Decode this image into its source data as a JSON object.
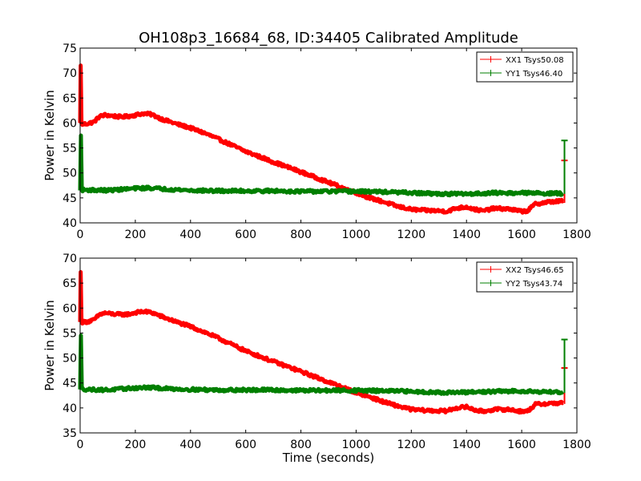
{
  "figure": {
    "title": "OH108p3_16684_68, ID:34405 Calibrated Amplitude",
    "xlabel": "Time (seconds)"
  },
  "chart_data": [
    {
      "type": "line",
      "title": "OH108p3_16684_68, ID:34405 Calibrated Amplitude",
      "xlabel": "",
      "ylabel": "Power in Kelvin",
      "xlim": [
        0,
        1800
      ],
      "ylim": [
        40,
        75
      ],
      "xticks": [
        "0",
        "200",
        "400",
        "600",
        "800",
        "1000",
        "1200",
        "1400",
        "1600",
        "1800"
      ],
      "yticks": [
        "40",
        "45",
        "50",
        "55",
        "60",
        "65",
        "70",
        "75"
      ],
      "grid": false,
      "legend_position": "top-right",
      "series": [
        {
          "name": "XX1 Tsys50.08",
          "color": "#ff0000",
          "x": [
            0,
            2,
            5,
            20,
            50,
            70,
            90,
            120,
            150,
            180,
            200,
            230,
            260,
            300,
            350,
            400,
            450,
            500,
            600,
            700,
            800,
            900,
            1000,
            1050,
            1100,
            1150,
            1200,
            1250,
            1300,
            1330,
            1360,
            1400,
            1430,
            1460,
            1500,
            1550,
            1600,
            1620,
            1650,
            1700,
            1750
          ],
          "y": [
            60,
            71.5,
            59.8,
            59.8,
            60.2,
            61.3,
            61.6,
            61.4,
            61.2,
            61.4,
            61.6,
            61.9,
            61.7,
            60.7,
            59.8,
            59.0,
            58.0,
            56.8,
            54.3,
            52.2,
            50.2,
            48.1,
            46.0,
            45.0,
            44.2,
            43.3,
            42.7,
            42.5,
            42.4,
            42.3,
            42.9,
            43.2,
            42.7,
            42.4,
            42.9,
            42.8,
            42.3,
            42.4,
            43.8,
            44.2,
            44.4
          ]
        },
        {
          "name": "YY1 Tsys46.40",
          "color": "#007f00",
          "x": [
            0,
            3,
            6,
            30,
            100,
            200,
            250,
            300,
            400,
            500,
            600,
            700,
            800,
            900,
            1000,
            1100,
            1200,
            1300,
            1400,
            1500,
            1600,
            1700,
            1750
          ],
          "y": [
            46.5,
            57.5,
            46.6,
            46.6,
            46.5,
            46.9,
            47.0,
            46.8,
            46.5,
            46.4,
            46.4,
            46.4,
            46.3,
            46.3,
            46.3,
            46.2,
            46.0,
            45.8,
            45.8,
            46.0,
            46.0,
            45.9,
            45.9
          ]
        }
      ],
      "end_spikes": [
        {
          "x": 1755,
          "low": 44.0,
          "high": 52.5,
          "color": "#ff0000"
        },
        {
          "x": 1755,
          "low": 45.8,
          "high": 56.5,
          "color": "#007f00"
        }
      ]
    },
    {
      "type": "line",
      "title": "",
      "xlabel": "Time (seconds)",
      "ylabel": "Power in Kelvin",
      "xlim": [
        0,
        1800
      ],
      "ylim": [
        35,
        70
      ],
      "xticks": [
        "0",
        "200",
        "400",
        "600",
        "800",
        "1000",
        "1200",
        "1400",
        "1600",
        "1800"
      ],
      "yticks": [
        "35",
        "40",
        "45",
        "50",
        "55",
        "60",
        "65",
        "70"
      ],
      "grid": false,
      "legend_position": "top-right",
      "series": [
        {
          "name": "XX2 Tsys46.65",
          "color": "#ff0000",
          "x": [
            0,
            2,
            5,
            20,
            50,
            70,
            90,
            120,
            150,
            180,
            200,
            230,
            260,
            300,
            350,
            400,
            450,
            500,
            600,
            700,
            800,
            900,
            1000,
            1050,
            1100,
            1150,
            1200,
            1250,
            1300,
            1330,
            1360,
            1400,
            1430,
            1460,
            1500,
            1550,
            1600,
            1620,
            1650,
            1700,
            1750
          ],
          "y": [
            57.2,
            67.2,
            57.2,
            57.2,
            57.6,
            58.7,
            59.0,
            58.8,
            58.7,
            58.8,
            59.1,
            59.3,
            59.1,
            58.2,
            57.2,
            56.3,
            55.2,
            54.0,
            51.4,
            49.3,
            47.3,
            45.2,
            43.1,
            42.2,
            41.2,
            40.4,
            39.7,
            39.5,
            39.4,
            39.4,
            40.0,
            40.2,
            39.6,
            39.3,
            39.7,
            39.7,
            39.3,
            39.3,
            40.7,
            40.9,
            41.0
          ]
        },
        {
          "name": "YY2 Tsys43.74",
          "color": "#007f00",
          "x": [
            0,
            3,
            6,
            30,
            100,
            200,
            250,
            300,
            400,
            500,
            600,
            700,
            800,
            900,
            1000,
            1100,
            1200,
            1300,
            1400,
            1500,
            1600,
            1700,
            1750
          ],
          "y": [
            43.7,
            54.5,
            43.8,
            43.7,
            43.6,
            44.0,
            44.1,
            43.9,
            43.7,
            43.6,
            43.6,
            43.6,
            43.5,
            43.5,
            43.5,
            43.4,
            43.3,
            43.1,
            43.1,
            43.3,
            43.4,
            43.2,
            43.2
          ]
        }
      ],
      "end_spikes": [
        {
          "x": 1755,
          "low": 40.8,
          "high": 48.0,
          "color": "#ff0000"
        },
        {
          "x": 1755,
          "low": 43.0,
          "high": 53.7,
          "color": "#007f00"
        }
      ]
    }
  ]
}
